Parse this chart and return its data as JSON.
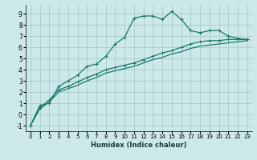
{
  "xlabel": "Humidex (Indice chaleur)",
  "background_color": "#cce8e8",
  "grid_color": "#aacccc",
  "line_color": "#1a7a6e",
  "xlim": [
    -0.5,
    23.5
  ],
  "ylim": [
    -1.5,
    9.8
  ],
  "xticks": [
    0,
    1,
    2,
    3,
    4,
    5,
    6,
    7,
    8,
    9,
    10,
    11,
    12,
    13,
    14,
    15,
    16,
    17,
    18,
    19,
    20,
    21,
    22,
    23
  ],
  "yticks": [
    -1,
    0,
    1,
    2,
    3,
    4,
    5,
    6,
    7,
    8,
    9
  ],
  "line1_x": [
    0,
    1,
    2,
    3,
    4,
    5,
    6,
    7,
    8,
    9,
    10,
    11,
    12,
    13,
    14,
    15,
    16,
    17,
    18,
    19,
    20,
    21,
    22,
    23
  ],
  "line1_y": [
    -1.0,
    0.8,
    1.0,
    2.5,
    3.0,
    3.5,
    4.3,
    4.5,
    5.2,
    6.3,
    6.9,
    8.6,
    8.8,
    8.8,
    8.5,
    9.2,
    8.5,
    7.5,
    7.3,
    7.5,
    7.5,
    7.0,
    6.8,
    6.7
  ],
  "line2_x": [
    0,
    1,
    2,
    3,
    4,
    5,
    6,
    7,
    8,
    9,
    10,
    11,
    12,
    13,
    14,
    15,
    16,
    17,
    18,
    19,
    20,
    21,
    22,
    23
  ],
  "line2_y": [
    -1.0,
    0.6,
    1.3,
    2.2,
    2.5,
    2.9,
    3.3,
    3.6,
    4.0,
    4.2,
    4.4,
    4.6,
    4.9,
    5.2,
    5.5,
    5.7,
    6.0,
    6.3,
    6.5,
    6.6,
    6.6,
    6.7,
    6.7,
    6.7
  ],
  "line3_x": [
    0,
    1,
    2,
    3,
    4,
    5,
    6,
    7,
    8,
    9,
    10,
    11,
    12,
    13,
    14,
    15,
    16,
    17,
    18,
    19,
    20,
    21,
    22,
    23
  ],
  "line3_y": [
    -1.0,
    0.5,
    1.1,
    2.0,
    2.3,
    2.6,
    3.0,
    3.3,
    3.7,
    3.9,
    4.1,
    4.3,
    4.6,
    4.9,
    5.1,
    5.4,
    5.6,
    5.9,
    6.1,
    6.2,
    6.3,
    6.4,
    6.5,
    6.6
  ]
}
